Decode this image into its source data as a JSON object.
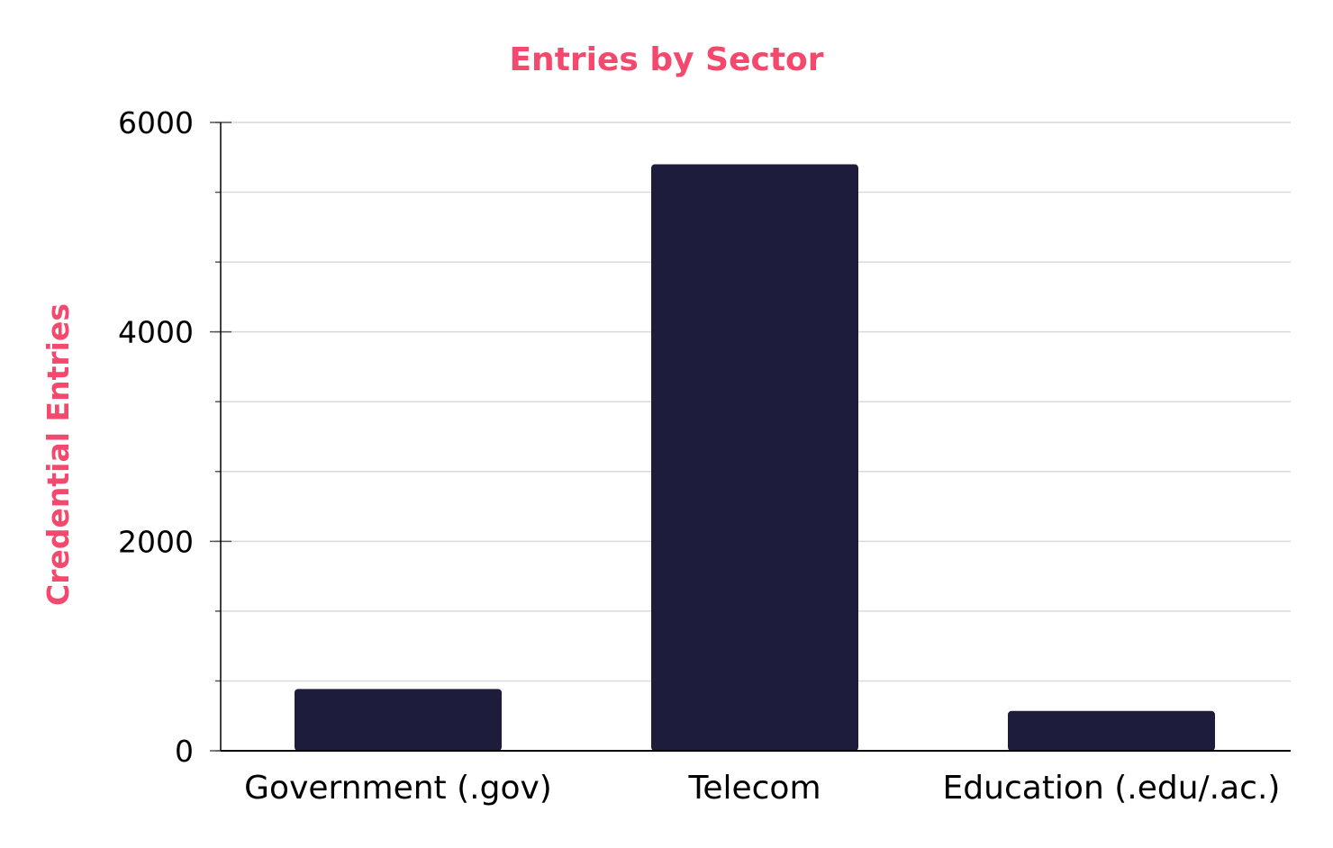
{
  "chart_data": {
    "type": "bar",
    "title": "Entries by Sector",
    "xlabel": "",
    "ylabel": "Credential Entries",
    "categories": [
      "Government (.gov)",
      "Telecom",
      "Education (.edu/.ac.)"
    ],
    "values": [
      590,
      5600,
      380
    ],
    "ylim": [
      0,
      6000
    ],
    "yticks": [
      0,
      2000,
      4000,
      6000
    ],
    "minor_tick_step": 666.67,
    "grid": true,
    "legend": "none",
    "colors": {
      "bar": "#1e1c3c",
      "title": "#f2496c",
      "ylabel": "#f2496c",
      "grid": "#d9d9d9",
      "axis": "#000000"
    }
  }
}
